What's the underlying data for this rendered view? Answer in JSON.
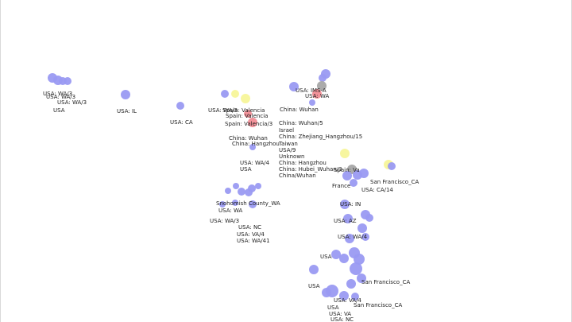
{
  "colors": {
    "usa": "#9a9af2",
    "europe": "#f7f59a",
    "china": "#f28d96",
    "other": "#a6a6a6",
    "label": "#222222"
  },
  "labels": [
    "USA: WA/3",
    "USA",
    "USA: IL",
    "USA: CA",
    "Spain: Valencia",
    "Spain: Valencia/3",
    "USA: IMS-A",
    "China: Wuhan",
    "China: Hangzhou",
    "China: Wuhan/5",
    "Israel",
    "China: Zhejiang_Hangzhou/15",
    "Taiwan",
    "USA/9",
    "Unknown",
    "China: Hubei_Wuhan/3",
    "China/Wuhan",
    "USA: WA/4",
    "Snohomish County_WA",
    "USA: WA",
    "USA: NC",
    "USA: VA/4",
    "USA: WA/41",
    "France",
    "Spain: Va",
    "USA: IN",
    "USA: AZ",
    "San Francisco_CA",
    "USA: VA",
    "USA: CA/14"
  ]
}
